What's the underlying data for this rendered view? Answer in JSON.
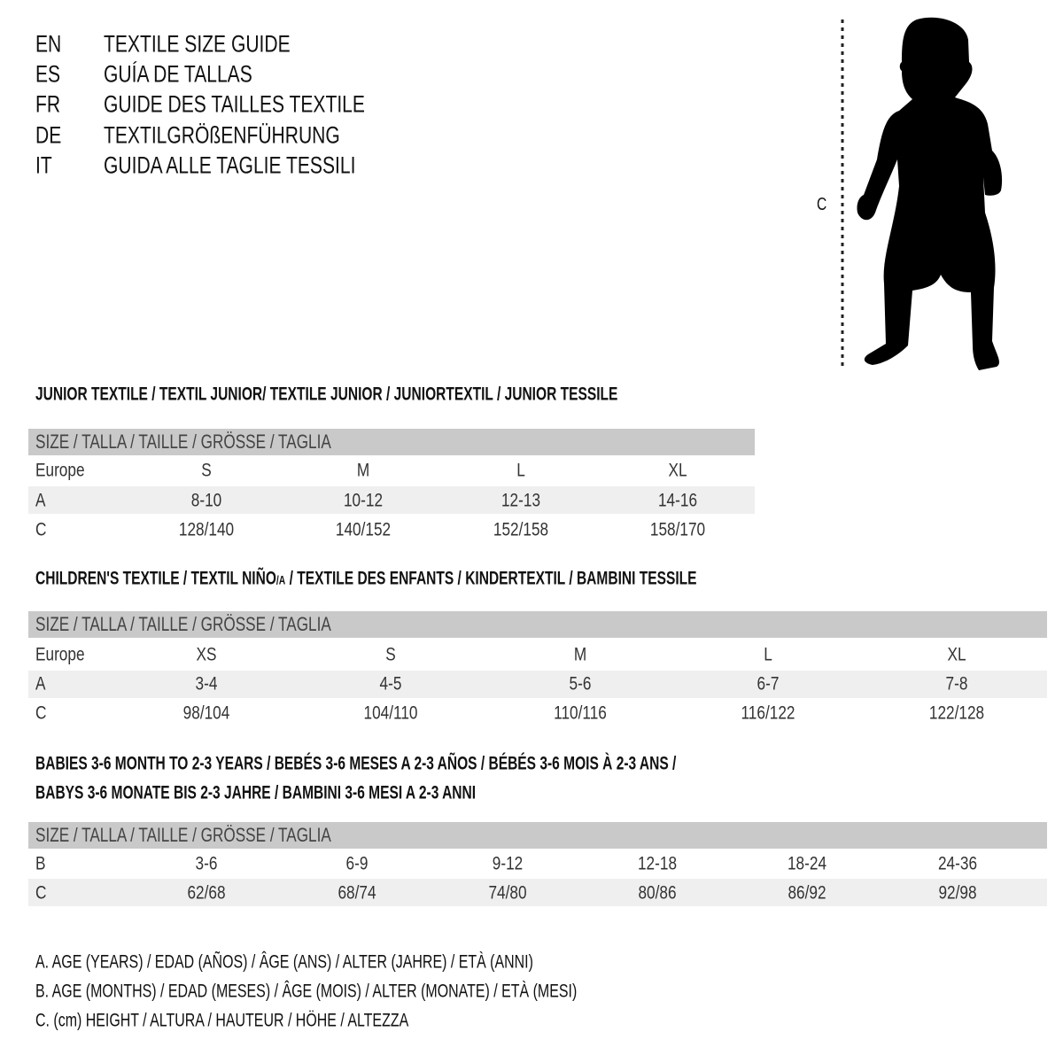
{
  "header": [
    {
      "code": "EN",
      "text": "TEXTILE SIZE GUIDE"
    },
    {
      "code": "ES",
      "text": "GUÍA DE TALLAS"
    },
    {
      "code": "FR",
      "text": "GUIDE DES TAILLES TEXTILE"
    },
    {
      "code": "DE",
      "text": "TEXTILGRÖßENFÜHRUNG"
    },
    {
      "code": "IT",
      "text": "GUIDA ALLE TAGLIE TESSILI"
    }
  ],
  "figure": {
    "measure_label": "C",
    "icon": "child-silhouette"
  },
  "size_header": "SIZE / TALLA / TAILLE / GRÖSSE / TAGLIA",
  "junior": {
    "title": "JUNIOR TEXTILE / TEXTIL JUNIOR/ TEXTILE JUNIOR / JUNIORTEXTIL / JUNIOR TESSILE",
    "rows": [
      {
        "label": "Europe",
        "values": [
          "S",
          "M",
          "L",
          "XL"
        ]
      },
      {
        "label": "A",
        "values": [
          "8-10",
          "10-12",
          "12-13",
          "14-16"
        ]
      },
      {
        "label": "C",
        "values": [
          "128/140",
          "140/152",
          "152/158",
          "158/170"
        ]
      }
    ]
  },
  "children": {
    "title_a": "CHILDREN'S TEXTILE / TEXTIL NIÑO",
    "title_sub": "/A",
    "title_b": " / TEXTILE DES ENFANTS / KINDERTEXTIL / BAMBINI TESSILE",
    "rows": [
      {
        "label": "Europe",
        "values": [
          "XS",
          "S",
          "M",
          "L",
          "XL"
        ]
      },
      {
        "label": "A",
        "values": [
          "3-4",
          "4-5",
          "5-6",
          "6-7",
          "7-8"
        ]
      },
      {
        "label": "C",
        "values": [
          "98/104",
          "104/110",
          "110/116",
          "116/122",
          "122/128"
        ]
      }
    ]
  },
  "babies": {
    "title_1": "BABIES 3-6 MONTH TO 2-3 YEARS / BEBÉS 3-6 MESES A 2-3 AÑOS / BÉBÉS 3-6 MOIS À 2-3 ANS /",
    "title_2": "BABYS 3-6 MONATE BIS 2-3 JAHRE / BAMBINI 3-6 MESI A 2-3 ANNI",
    "rows": [
      {
        "label": "B",
        "values": [
          "3-6",
          "6-9",
          "9-12",
          "12-18",
          "18-24",
          "24-36"
        ]
      },
      {
        "label": "C",
        "values": [
          "62/68",
          "68/74",
          "74/80",
          "80/86",
          "86/92",
          "92/98"
        ]
      }
    ]
  },
  "legend": [
    "A. AGE (YEARS) / EDAD (AÑOS) / ÂGE (ANS) / ALTER (JAHRE) / ETÀ (ANNI)",
    "B. AGE (MONTHS) / EDAD (MESES) / ÂGE (MOIS) / ALTER (MONATE) / ETÀ (MESI)",
    "C. (cm) HEIGHT / ALTURA / HAUTEUR / HÖHE / ALTEZZA"
  ],
  "colors": {
    "header_bar": "#c9c9c9",
    "stripe": "#efefef",
    "text": "#111111"
  }
}
